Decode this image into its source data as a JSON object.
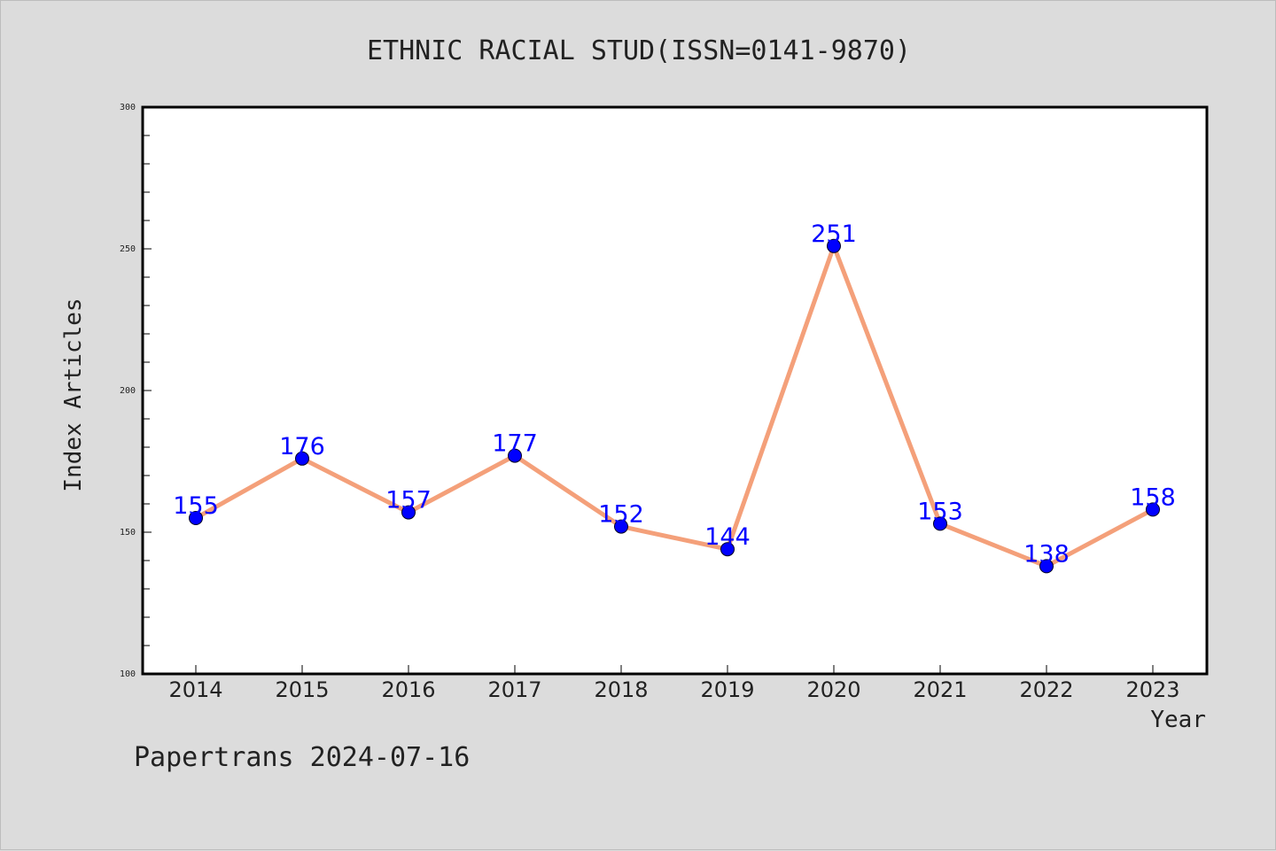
{
  "colors": {
    "background": "#dcdcdc",
    "plot_background": "#ffffff",
    "line": "#f4a07a",
    "marker": "#0000ff",
    "data_label": "#0000ff",
    "text": "#222222"
  },
  "chart_data": {
    "type": "line",
    "title": "ETHNIC RACIAL STUD(ISSN=0141-9870)",
    "xlabel": "Year",
    "ylabel": "Index Articles",
    "categories": [
      "2014",
      "2015",
      "2016",
      "2017",
      "2018",
      "2019",
      "2020",
      "2021",
      "2022",
      "2023"
    ],
    "series": [
      {
        "values": [
          155,
          176,
          157,
          177,
          152,
          144,
          251,
          153,
          138,
          158
        ]
      }
    ],
    "ylim": [
      100,
      300
    ],
    "y_ticks": [
      "100",
      "150",
      "200",
      "250",
      "300"
    ],
    "grid": false,
    "data_labels": true
  },
  "footer": {
    "text": "Papertrans 2024-07-16"
  }
}
